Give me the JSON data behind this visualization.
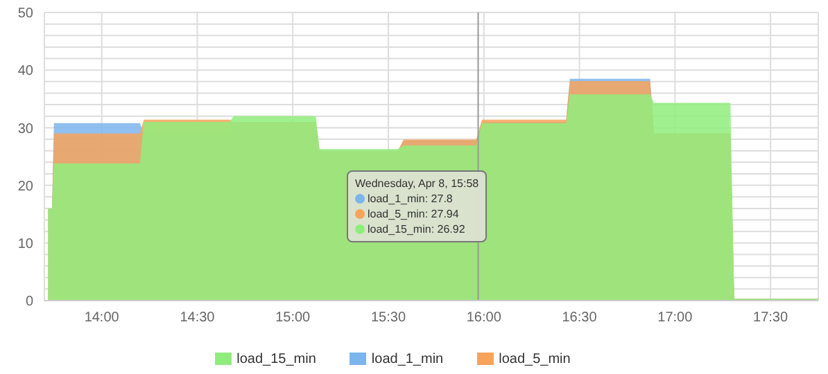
{
  "chart_data": {
    "type": "area",
    "x": [
      13.72,
      13.74,
      13.75,
      14.2,
      14.22,
      14.67,
      14.69,
      15.12,
      15.14,
      15.55,
      15.58,
      15.96,
      15.99,
      16.43,
      16.45,
      16.87,
      16.89,
      17.29,
      17.31,
      17.75
    ],
    "series": [
      {
        "name": "load_1_min",
        "color": "#7cb5ec",
        "values": [
          16,
          16,
          30.8,
          30.8,
          28.8,
          28.8,
          31,
          31,
          26,
          26,
          27.8,
          27.8,
          31,
          31,
          38.5,
          38.5,
          29,
          29,
          0.3,
          0.3
        ]
      },
      {
        "name": "load_5_min",
        "color": "#f7a35c",
        "values": [
          16,
          16,
          29,
          29,
          31.4,
          31.4,
          31,
          31,
          26,
          26,
          27.94,
          27.94,
          31.4,
          31.4,
          38.1,
          38.1,
          29,
          29,
          0.3,
          0.3
        ]
      },
      {
        "name": "load_15_min",
        "color": "#90ed7d",
        "values": [
          16,
          16,
          23.8,
          23.8,
          31,
          31,
          32,
          32,
          26.3,
          26.3,
          26.92,
          26.92,
          30.8,
          30.8,
          35.8,
          35.8,
          34.3,
          34.3,
          0.3,
          0.3
        ]
      }
    ],
    "xlim": [
      13.7,
      17.75
    ],
    "xticks": [
      {
        "value": 14,
        "label": "14:00"
      },
      {
        "value": 14.5,
        "label": "14:30"
      },
      {
        "value": 15,
        "label": "15:00"
      },
      {
        "value": 15.5,
        "label": "15:30"
      },
      {
        "value": 16,
        "label": "16:00"
      },
      {
        "value": 16.5,
        "label": "16:30"
      },
      {
        "value": 17,
        "label": "17:00"
      },
      {
        "value": 17.5,
        "label": "17:30"
      }
    ],
    "ylim": [
      0,
      50
    ],
    "yticks": [
      0,
      {
        "value": 2,
        "label": null
      },
      {
        "value": 4,
        "label": null
      },
      {
        "value": 6,
        "label": null
      },
      {
        "value": 8,
        "label": null
      },
      10,
      {
        "value": 12,
        "label": null
      },
      {
        "value": 14,
        "label": null
      },
      {
        "value": 16,
        "label": null
      },
      {
        "value": 18,
        "label": null
      },
      20,
      {
        "value": 22,
        "label": null
      },
      {
        "value": 24,
        "label": null
      },
      {
        "value": 26,
        "label": null
      },
      {
        "value": 28,
        "label": null
      },
      30,
      {
        "value": 32,
        "label": null
      },
      {
        "value": 34,
        "label": null
      },
      {
        "value": 36,
        "label": null
      },
      {
        "value": 38,
        "label": null
      },
      40,
      {
        "value": 42,
        "label": null
      },
      {
        "value": 44,
        "label": null
      },
      {
        "value": 46,
        "label": null
      },
      {
        "value": 48,
        "label": null
      },
      50
    ],
    "ref_lines": [
      {
        "axis": "x",
        "value": 15.97,
        "color": "#999999"
      }
    ],
    "annotations": [
      "Wednesday, Apr 8, 15:58",
      "load_1_min: 27.8",
      "load_5_min: 27.94",
      "load_15_min: 26.92"
    ],
    "grid": true,
    "legend": "bottom"
  }
}
